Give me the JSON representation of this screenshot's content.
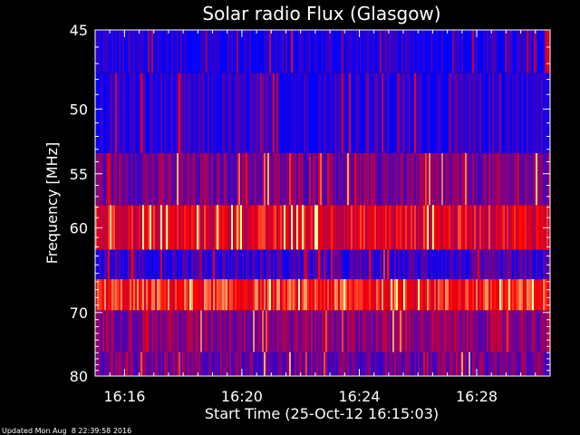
{
  "chart_data": {
    "type": "heatmap",
    "title": "Solar radio Flux (Glasgow)",
    "xlabel": "Start Time (25-Oct-12 16:15:03)",
    "ylabel": "Frequency [MHz]",
    "x_ticks": [
      "16:16",
      "16:20",
      "16:24",
      "16:28"
    ],
    "x_tick_values_min": [
      1,
      5,
      9,
      13
    ],
    "x_range_min": [
      0,
      15.5
    ],
    "y_ticks": [
      45,
      50,
      55,
      60,
      70,
      80
    ],
    "y_range_mhz": [
      45,
      80
    ],
    "y_scale": "reciprocal",
    "colormap": [
      "#0000ff",
      "#ff0000",
      "#ffff99"
    ],
    "frequency_bands": [
      {
        "from_mhz": 45.0,
        "to_mhz": 47.6,
        "level": 0.06
      },
      {
        "from_mhz": 47.6,
        "to_mhz": 53.3,
        "level": 0.1
      },
      {
        "from_mhz": 53.3,
        "to_mhz": 57.8,
        "level": 0.32
      },
      {
        "from_mhz": 57.8,
        "to_mhz": 62.3,
        "level": 0.62
      },
      {
        "from_mhz": 62.3,
        "to_mhz": 65.7,
        "level": 0.15
      },
      {
        "from_mhz": 65.7,
        "to_mhz": 69.7,
        "level": 0.72
      },
      {
        "from_mhz": 69.7,
        "to_mhz": 75.9,
        "level": 0.38
      },
      {
        "from_mhz": 75.9,
        "to_mhz": 80.0,
        "level": 0.3
      }
    ],
    "grid": false,
    "legend": "none",
    "footer": "Updated Mon Aug  8 22:39:58 2016",
    "colors": {
      "background": "#000000",
      "axes": "#ffffff"
    }
  }
}
